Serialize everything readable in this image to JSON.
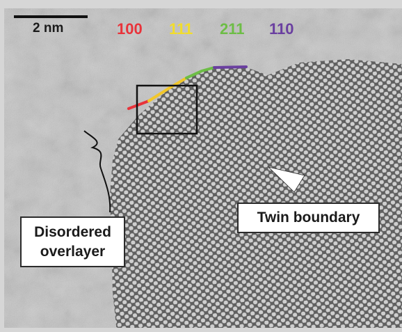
{
  "scale_bar": {
    "label": "2 nm"
  },
  "facets": [
    {
      "label": "100",
      "color": "#e8333a"
    },
    {
      "label": "111",
      "color": "#f2dd2a"
    },
    {
      "label": "211",
      "color": "#6dbd46"
    },
    {
      "label": "110",
      "color": "#6a3fa0"
    }
  ],
  "annotations": {
    "twin_boundary": "Twin boundary",
    "disordered_overlayer": [
      "Disordered",
      "overlayer"
    ]
  },
  "colors": {
    "background": "#c8c8c8",
    "lattice_dark": "#2e2e2e",
    "lattice_light": "#e6e6e6"
  }
}
